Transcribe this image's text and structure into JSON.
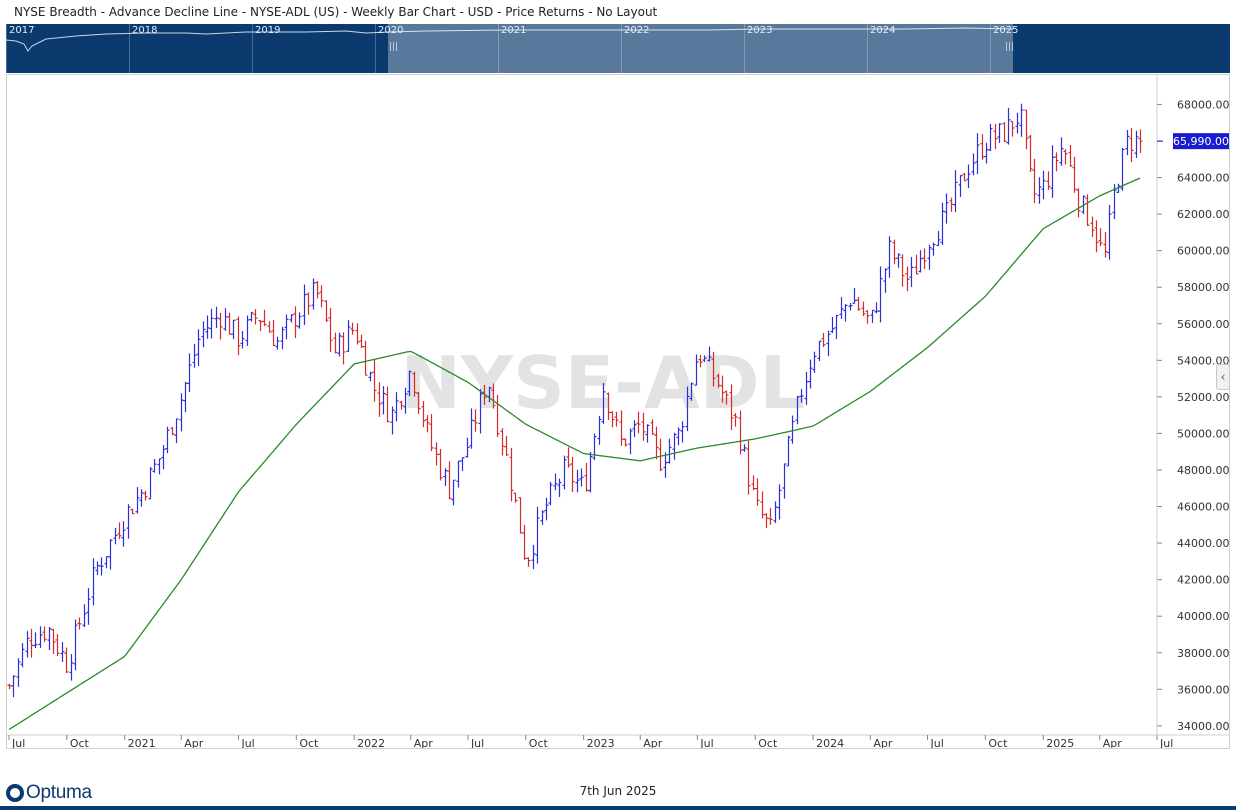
{
  "header": {
    "title": "NYSE Breadth - Advance Decline Line - NYSE-ADL (US) - Weekly Bar Chart - USD - Price Returns - No Layout"
  },
  "navigator": {
    "years": [
      "2017",
      "2018",
      "2019",
      "2020",
      "2021",
      "2022",
      "2023",
      "2024",
      "2025"
    ]
  },
  "watermark": "NYSE-ADL",
  "last_price_label": "65,990.00",
  "footer": {
    "brand": "Optuma",
    "date": "7th Jun 2025"
  },
  "colors": {
    "up_bar": "#2b2fd6",
    "down_bar": "#d42a2a",
    "moving_average": "#2a8a2a",
    "navigator_bg": "#0b3a6e",
    "price_label_bg": "#1a1ad0"
  },
  "chart_data": {
    "type": "bar",
    "period": "weekly",
    "y_range": [
      33500,
      69500
    ],
    "y_ticks": [
      34000,
      36000,
      38000,
      40000,
      42000,
      44000,
      46000,
      48000,
      50000,
      52000,
      54000,
      56000,
      58000,
      60000,
      62000,
      64000,
      66000,
      68000
    ],
    "y_tick_labels": [
      "34000.00",
      "36000.00",
      "38000.00",
      "40000.00",
      "42000.00",
      "44000.00",
      "46000.00",
      "48000.00",
      "50000.00",
      "52000.00",
      "54000.00",
      "56000.00",
      "58000.00",
      "60000.00",
      "62000.00",
      "64000.00",
      "66000.00",
      "68000.00"
    ],
    "x_ticks": [
      {
        "date": "2020-07-01",
        "label": "Jul"
      },
      {
        "date": "2020-10-01",
        "label": "Oct"
      },
      {
        "date": "2021-01-01",
        "label": "2021"
      },
      {
        "date": "2021-04-01",
        "label": "Apr"
      },
      {
        "date": "2021-07-01",
        "label": "Jul"
      },
      {
        "date": "2021-10-01",
        "label": "Oct"
      },
      {
        "date": "2022-01-01",
        "label": "2022"
      },
      {
        "date": "2022-04-01",
        "label": "Apr"
      },
      {
        "date": "2022-07-01",
        "label": "Jul"
      },
      {
        "date": "2022-10-01",
        "label": "Oct"
      },
      {
        "date": "2023-01-01",
        "label": "2023"
      },
      {
        "date": "2023-04-01",
        "label": "Apr"
      },
      {
        "date": "2023-07-01",
        "label": "Jul"
      },
      {
        "date": "2023-10-01",
        "label": "Oct"
      },
      {
        "date": "2024-01-01",
        "label": "2024"
      },
      {
        "date": "2024-04-01",
        "label": "Apr"
      },
      {
        "date": "2024-07-01",
        "label": "Jul"
      },
      {
        "date": "2024-10-01",
        "label": "Oct"
      },
      {
        "date": "2025-01-01",
        "label": "2025"
      },
      {
        "date": "2025-04-01",
        "label": "Apr"
      },
      {
        "date": "2025-07-01",
        "label": "Jul"
      }
    ],
    "x_range": [
      "2020-07-01",
      "2025-07-01"
    ],
    "price_anchors": [
      [
        "2020-07-01",
        36200
      ],
      [
        "2020-08-01",
        38800
      ],
      [
        "2020-09-01",
        39300
      ],
      [
        "2020-10-01",
        37400
      ],
      [
        "2020-11-15",
        42500
      ],
      [
        "2021-01-01",
        45500
      ],
      [
        "2021-02-01",
        47000
      ],
      [
        "2021-03-01",
        49000
      ],
      [
        "2021-04-01",
        52000
      ],
      [
        "2021-05-01",
        55500
      ],
      [
        "2021-06-01",
        56500
      ],
      [
        "2021-07-01",
        55200
      ],
      [
        "2021-08-01",
        56500
      ],
      [
        "2021-09-01",
        55000
      ],
      [
        "2021-10-01",
        56500
      ],
      [
        "2021-11-01",
        57800
      ],
      [
        "2021-12-01",
        54500
      ],
      [
        "2022-01-01",
        55800
      ],
      [
        "2022-02-01",
        52500
      ],
      [
        "2022-03-01",
        51000
      ],
      [
        "2022-04-01",
        53500
      ],
      [
        "2022-05-01",
        49500
      ],
      [
        "2022-06-01",
        47000
      ],
      [
        "2022-07-01",
        49500
      ],
      [
        "2022-08-01",
        53000
      ],
      [
        "2022-09-01",
        48500
      ],
      [
        "2022-10-01",
        43000
      ],
      [
        "2022-11-01",
        46000
      ],
      [
        "2022-12-01",
        48000
      ],
      [
        "2023-01-01",
        47000
      ],
      [
        "2023-02-01",
        52500
      ],
      [
        "2023-03-01",
        49500
      ],
      [
        "2023-04-01",
        50500
      ],
      [
        "2023-05-01",
        48500
      ],
      [
        "2023-06-01",
        50000
      ],
      [
        "2023-07-01",
        54500
      ],
      [
        "2023-08-01",
        52800
      ],
      [
        "2023-09-01",
        50500
      ],
      [
        "2023-10-01",
        46000
      ],
      [
        "2023-10-25",
        44700
      ],
      [
        "2023-11-15",
        48000
      ],
      [
        "2023-12-10",
        52000
      ],
      [
        "2024-01-01",
        54500
      ],
      [
        "2024-02-01",
        55800
      ],
      [
        "2024-03-01",
        57500
      ],
      [
        "2024-04-01",
        56000
      ],
      [
        "2024-05-01",
        60000
      ],
      [
        "2024-06-01",
        58300
      ],
      [
        "2024-07-01",
        60500
      ],
      [
        "2024-08-01",
        62000
      ],
      [
        "2024-09-01",
        64500
      ],
      [
        "2024-10-01",
        66000
      ],
      [
        "2024-11-01",
        66500
      ],
      [
        "2024-11-25",
        67500
      ],
      [
        "2024-12-15",
        63000
      ],
      [
        "2025-01-01",
        63500
      ],
      [
        "2025-02-01",
        65800
      ],
      [
        "2025-03-01",
        62500
      ],
      [
        "2025-03-20",
        61500
      ],
      [
        "2025-04-08",
        59500
      ],
      [
        "2025-04-25",
        63500
      ],
      [
        "2025-05-15",
        66000
      ],
      [
        "2025-06-06",
        65990
      ]
    ],
    "moving_average_anchors": [
      [
        "2020-07-01",
        33800
      ],
      [
        "2020-10-01",
        35800
      ],
      [
        "2021-01-01",
        37800
      ],
      [
        "2021-04-01",
        42000
      ],
      [
        "2021-07-01",
        46800
      ],
      [
        "2021-10-01",
        50500
      ],
      [
        "2022-01-01",
        53800
      ],
      [
        "2022-04-01",
        54500
      ],
      [
        "2022-07-01",
        52800
      ],
      [
        "2022-10-01",
        50500
      ],
      [
        "2023-01-01",
        48900
      ],
      [
        "2023-04-01",
        48500
      ],
      [
        "2023-07-01",
        49200
      ],
      [
        "2023-10-01",
        49700
      ],
      [
        "2024-01-01",
        50400
      ],
      [
        "2024-04-01",
        52300
      ],
      [
        "2024-07-01",
        54700
      ],
      [
        "2024-10-01",
        57500
      ],
      [
        "2025-01-01",
        61200
      ],
      [
        "2025-04-01",
        63000
      ],
      [
        "2025-06-06",
        64000
      ]
    ],
    "series": [
      {
        "name": "NYSE-ADL",
        "kind": "ohlc",
        "last": 65990
      },
      {
        "name": "",
        "kind": "moving-average-line"
      }
    ]
  }
}
